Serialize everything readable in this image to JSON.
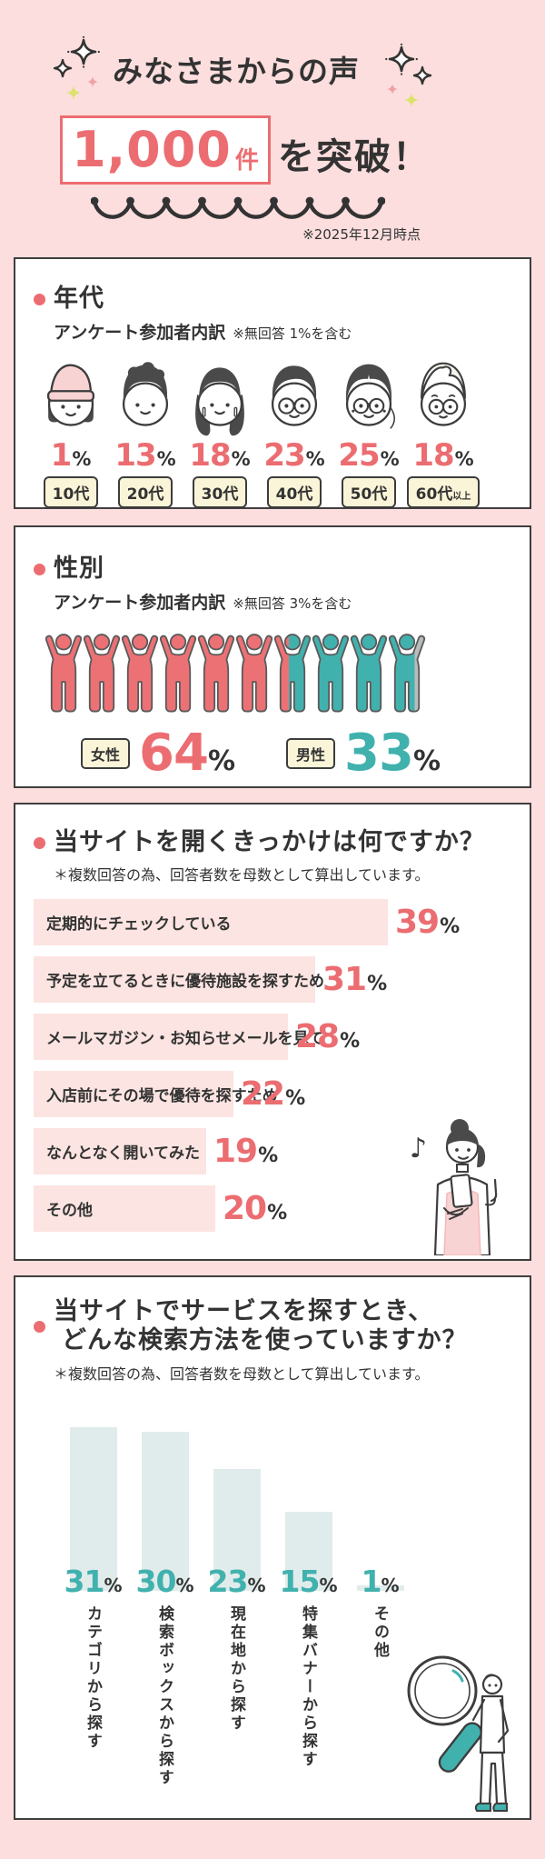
{
  "header": {
    "title": "みなさまからの声",
    "count": "1,000",
    "count_unit": "件",
    "count_suffix": "を突破！",
    "note": "※2025年12月時点",
    "sparkle_icon": "sparkle-icon",
    "accent_color": "#ec6d71"
  },
  "age_section": {
    "title": "年代",
    "subtitle": "アンケート参加者内訳",
    "subtitle_note": "※無回答 1%を含む",
    "unit": "%",
    "items": [
      {
        "percent": "1",
        "label": "10代",
        "label_small": "",
        "icon": "teen-girl-face-icon"
      },
      {
        "percent": "13",
        "label": "20代",
        "label_small": "",
        "icon": "young-man-face-icon"
      },
      {
        "percent": "18",
        "label": "30代",
        "label_small": "",
        "icon": "woman-face-icon"
      },
      {
        "percent": "23",
        "label": "40代",
        "label_small": "",
        "icon": "man-glasses-face-icon"
      },
      {
        "percent": "25",
        "label": "50代",
        "label_small": "",
        "icon": "woman-glasses-face-icon"
      },
      {
        "percent": "18",
        "label": "60代",
        "label_small": "以上",
        "icon": "senior-face-icon"
      }
    ]
  },
  "gender_section": {
    "title": "性別",
    "subtitle": "アンケート参加者内訳",
    "subtitle_note": "※無回答 3%を含む",
    "unit": "%",
    "figures_count": 10,
    "figure_icon": "raised-arms-person-icon",
    "female": {
      "label": "女性",
      "percent": "64",
      "ratio": 0.64,
      "color": "#ec7175"
    },
    "male": {
      "label": "男性",
      "percent": "33",
      "ratio": 0.33,
      "color": "#41b1ae"
    },
    "no_answer_color": "#b9bcbc"
  },
  "trigger_section": {
    "title": "当サイトを開くきっかけは何ですか？",
    "note": "＊複数回答の為、回答者数を母数として算出しています。",
    "unit": "%",
    "illustration": "woman-with-phone",
    "bars": [
      {
        "label": "定期的にチェックしている",
        "value": 39
      },
      {
        "label": "予定を立てるときに優待施設を探すため",
        "value": 31
      },
      {
        "label": "メールマガジン・お知らせメールを見て",
        "value": 28
      },
      {
        "label": "入店前にその場で優待を探すため",
        "value": 22
      },
      {
        "label": "なんとなく開いてみた",
        "value": 19
      },
      {
        "label": "その他",
        "value": 20
      }
    ]
  },
  "search_section": {
    "title_line1": "当サイトでサービスを探すとき、",
    "title_line2": "どんな検索方法を使っていますか？",
    "note": "＊複数回答の為、回答者数を母数として算出しています。",
    "unit": "%",
    "illustration": "man-with-magnifier",
    "bars": [
      {
        "label": "カテゴリから探す",
        "value": 31
      },
      {
        "label": "検索ボックスから探す",
        "value": 30
      },
      {
        "label": "現在地から探す",
        "value": 23
      },
      {
        "label": "特集バナーから探す",
        "value": 15
      },
      {
        "label": "その他",
        "value": 1
      }
    ]
  },
  "colors": {
    "background": "#fbdedd",
    "accent_pink": "#ec6d71",
    "teal": "#41b1ae",
    "no_answer_gray": "#b9bcbc",
    "cream_label": "#faf5d8",
    "light_pink_bar": "#fbe4e1",
    "light_blue_bar": "#e0eceb",
    "outline_dark": "#3f3f3f"
  },
  "chart_data": [
    {
      "type": "bar",
      "subtype": "pictogram-faces",
      "title": "年代",
      "subtitle": "アンケート参加者内訳",
      "annotation": "※無回答 1%を含む",
      "categories": [
        "10代",
        "20代",
        "30代",
        "40代",
        "50代",
        "60代以上"
      ],
      "values": [
        1,
        13,
        18,
        23,
        25,
        18
      ],
      "unit": "%"
    },
    {
      "type": "bar",
      "subtype": "pictogram-people",
      "title": "性別",
      "subtitle": "アンケート参加者内訳",
      "annotation": "※無回答 3%を含む",
      "categories": [
        "女性",
        "男性"
      ],
      "values": [
        64,
        33
      ],
      "unit": "%"
    },
    {
      "type": "bar",
      "orientation": "horizontal",
      "title": "当サイトを開くきっかけは何ですか？",
      "annotation": "＊複数回答の為、回答者数を母数として算出しています。",
      "categories": [
        "定期的にチェックしている",
        "予定を立てるときに優待施設を探すため",
        "メールマガジン・お知らせメールを見て",
        "入店前にその場で優待を探すため",
        "なんとなく開いてみた",
        "その他"
      ],
      "values": [
        39,
        31,
        28,
        22,
        19,
        20
      ],
      "unit": "%",
      "xlim": [
        0,
        53
      ]
    },
    {
      "type": "bar",
      "orientation": "vertical",
      "title": "当サイトでサービスを探すとき、どんな検索方法を使っていますか？",
      "annotation": "＊複数回答の為、回答者数を母数として算出しています。",
      "categories": [
        "カテゴリから探す",
        "検索ボックスから探す",
        "現在地から探す",
        "特集バナーから探す",
        "その他"
      ],
      "values": [
        31,
        30,
        23,
        15,
        1
      ],
      "unit": "%",
      "ylim": [
        0,
        31
      ]
    }
  ]
}
